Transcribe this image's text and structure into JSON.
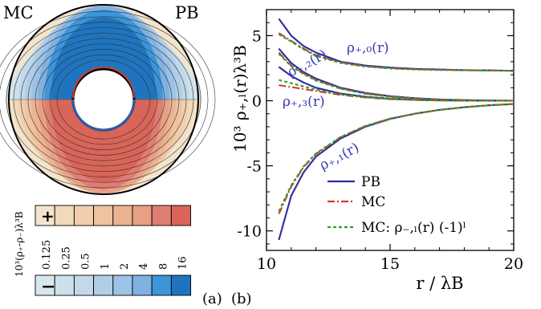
{
  "panel_a": {
    "label": "(a)",
    "corner_left": "MC",
    "corner_right": "PB",
    "colorbar": {
      "ylabel": "10³(ρ₊-ρ₋)λ³B",
      "plus_sign": "+",
      "minus_sign": "−",
      "ticks": [
        "0.125",
        "0.25",
        "0.5",
        "1",
        "2",
        "4",
        "8",
        "16"
      ],
      "positive_colors": [
        "#f3e4cd",
        "#f2d9bc",
        "#f1cfad",
        "#efc3a0",
        "#ecb392",
        "#e8a084",
        "#e07d72",
        "#d96458"
      ],
      "negative_colors": [
        "#d8e6ee",
        "#cde1ec",
        "#c1d9ea",
        "#b1cee7",
        "#9cc2e5",
        "#80b1e0",
        "#3b95d8",
        "#1f74c0"
      ]
    }
  },
  "panel_b": {
    "label": "(b)",
    "chart_data": {
      "type": "line",
      "xlabel": "r / λB",
      "ylabel": "10³ ρ₊,ₗ(r)λ³B",
      "xlim": [
        10,
        20
      ],
      "ylim": [
        -11.5,
        7
      ],
      "xticks": [
        "10",
        "15",
        "20"
      ],
      "yticks": [
        "5",
        "0",
        "-5",
        "-10"
      ],
      "legend": {
        "placement": "bottom-right",
        "entries": [
          {
            "label": "PB",
            "color": "#2b2ba0",
            "style": "solid"
          },
          {
            "label": "MC",
            "color": "#d43a2a",
            "style": "dashdot"
          },
          {
            "label": "MC: ρ₋,ₗ(r) (-1)ˡ",
            "color": "#2aa02a",
            "style": "dashed"
          }
        ]
      },
      "annotations": [
        "ρ₊,₀(r)",
        "ρ₊,₂(r)",
        "ρ₊,₃(r)",
        "ρ₊,₁(r)"
      ],
      "series": [
        {
          "name": "PB",
          "component": "ρ₊,₀",
          "x": [
            10.5,
            11,
            11.5,
            12,
            13,
            14,
            15,
            16,
            17,
            18,
            19,
            20
          ],
          "values": [
            6.3,
            5.0,
            4.2,
            3.7,
            3.0,
            2.7,
            2.55,
            2.45,
            2.4,
            2.35,
            2.33,
            2.3
          ]
        },
        {
          "name": "MC",
          "component": "ρ₊,₀",
          "x": [
            10.5,
            11,
            11.5,
            12,
            13,
            14,
            15,
            16,
            17,
            18,
            19,
            20
          ],
          "values": [
            5.2,
            4.6,
            4.0,
            3.5,
            2.95,
            2.65,
            2.5,
            2.42,
            2.38,
            2.35,
            2.33,
            2.3
          ]
        },
        {
          "name": "MC: ρ₋,ₗ(r) (-1)ˡ",
          "component": "ρ₊,₀",
          "x": [
            10.5,
            11,
            11.5,
            12,
            13,
            14,
            15,
            16,
            17,
            18,
            19,
            20
          ],
          "values": [
            5.1,
            4.55,
            3.95,
            3.45,
            2.9,
            2.62,
            2.48,
            2.4,
            2.36,
            2.34,
            2.32,
            2.3
          ]
        },
        {
          "name": "PB",
          "component": "ρ₊,₂",
          "x": [
            10.5,
            11,
            11.5,
            12,
            13,
            14,
            15,
            16,
            17,
            18,
            19,
            20
          ],
          "values": [
            4.0,
            2.9,
            2.2,
            1.7,
            1.0,
            0.6,
            0.35,
            0.2,
            0.1,
            0.05,
            0.02,
            0.0
          ]
        },
        {
          "name": "MC",
          "component": "ρ₊,₂",
          "x": [
            10.5,
            11,
            11.5,
            12,
            13,
            14,
            15,
            16,
            17,
            18,
            19,
            20
          ],
          "values": [
            3.7,
            2.7,
            2.1,
            1.6,
            0.95,
            0.55,
            0.32,
            0.18,
            0.09,
            0.04,
            0.01,
            0.0
          ]
        },
        {
          "name": "MC: ρ₋,ₗ(r) (-1)ˡ",
          "component": "ρ₊,₂",
          "x": [
            10.5,
            11,
            11.5,
            12,
            13,
            14,
            15,
            16,
            17,
            18,
            19,
            20
          ],
          "values": [
            3.6,
            2.65,
            2.05,
            1.55,
            0.92,
            0.53,
            0.3,
            0.17,
            0.08,
            0.04,
            0.01,
            0.0
          ]
        },
        {
          "name": "PB",
          "component": "ρ₊,₃",
          "x": [
            10.5,
            11,
            11.5,
            12,
            13,
            14,
            15,
            16,
            17,
            18,
            19,
            20
          ],
          "values": [
            2.6,
            1.9,
            1.4,
            1.0,
            0.55,
            0.3,
            0.15,
            0.07,
            0.03,
            0.01,
            0.0,
            0.0
          ]
        },
        {
          "name": "MC",
          "component": "ρ₊,₃",
          "x": [
            10.5,
            11,
            11.5,
            12,
            13,
            14,
            15,
            16,
            17,
            18,
            19,
            20
          ],
          "values": [
            1.2,
            1.05,
            0.9,
            0.75,
            0.45,
            0.25,
            0.12,
            0.06,
            0.02,
            0.01,
            0.0,
            0.0
          ]
        },
        {
          "name": "MC: ρ₋,ₗ(r) (-1)ˡ",
          "component": "ρ₊,₃",
          "x": [
            10.5,
            11,
            11.5,
            12,
            13,
            14,
            15,
            16,
            17,
            18,
            19,
            20
          ],
          "values": [
            1.6,
            1.35,
            1.1,
            0.85,
            0.5,
            0.27,
            0.13,
            0.06,
            0.02,
            0.01,
            0.0,
            0.0
          ]
        },
        {
          "name": "PB",
          "component": "ρ₊,₁",
          "x": [
            10.5,
            11,
            11.5,
            12,
            13,
            14,
            15,
            16,
            17,
            18,
            19,
            20
          ],
          "values": [
            -10.7,
            -7.3,
            -5.5,
            -4.3,
            -2.9,
            -2.0,
            -1.4,
            -1.0,
            -0.7,
            -0.5,
            -0.35,
            -0.25
          ]
        },
        {
          "name": "MC",
          "component": "ρ₊,₁",
          "x": [
            10.5,
            11,
            11.5,
            12,
            13,
            14,
            15,
            16,
            17,
            18,
            19,
            20
          ],
          "values": [
            -8.7,
            -6.6,
            -5.1,
            -4.1,
            -2.8,
            -1.95,
            -1.38,
            -1.0,
            -0.7,
            -0.5,
            -0.35,
            -0.25
          ]
        },
        {
          "name": "MC: ρ₋,ₗ(r) (-1)ˡ",
          "component": "ρ₊,₁",
          "x": [
            10.5,
            11,
            11.5,
            12,
            13,
            14,
            15,
            16,
            17,
            18,
            19,
            20
          ],
          "values": [
            -8.5,
            -6.5,
            -5.05,
            -4.05,
            -2.78,
            -1.93,
            -1.37,
            -1.0,
            -0.7,
            -0.5,
            -0.35,
            -0.25
          ]
        }
      ]
    }
  }
}
